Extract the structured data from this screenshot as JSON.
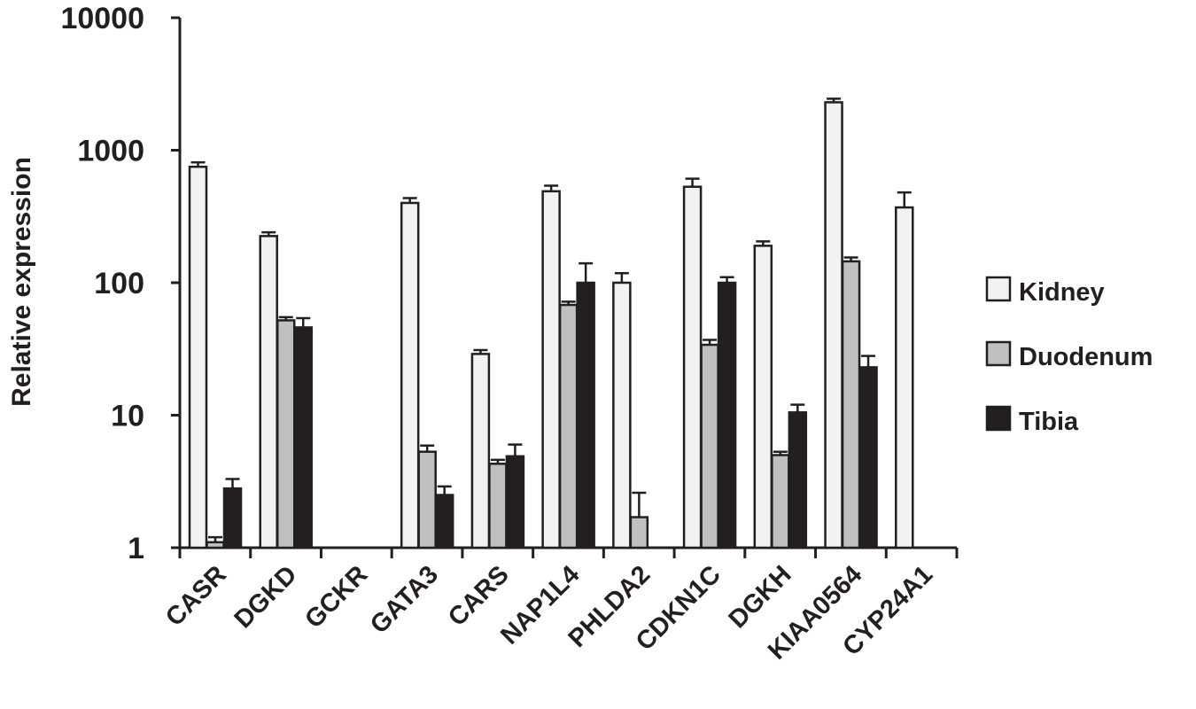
{
  "chart_data": {
    "type": "bar",
    "ylabel": "Relative expression",
    "xlabel": "",
    "yscale": "log",
    "ylim": [
      1,
      10000
    ],
    "yticks": [
      "1",
      "10",
      "100",
      "1000",
      "10000"
    ],
    "legend_position": "right",
    "categories": [
      "CASR",
      "DGKD",
      "GCKR",
      "GATA3",
      "CARS",
      "NAP1L4",
      "PHLDA2",
      "CDKN1C",
      "DGKH",
      "KIAA0564",
      "CYP24A1"
    ],
    "series": [
      {
        "name": "Kidney",
        "color": "#f2f2f2",
        "values": [
          750,
          225,
          null,
          400,
          29,
          490,
          100,
          530,
          190,
          2300,
          370
        ],
        "errors": [
          60,
          15,
          null,
          35,
          2,
          50,
          18,
          80,
          15,
          150,
          110
        ]
      },
      {
        "name": "Duodenum",
        "color": "#c0c0c0",
        "values": [
          1.1,
          52,
          null,
          5.3,
          4.3,
          68,
          1.7,
          34,
          5.0,
          145,
          null
        ],
        "errors": [
          0.1,
          3,
          null,
          0.6,
          0.3,
          4,
          0.9,
          3,
          0.3,
          10,
          null
        ]
      },
      {
        "name": "Tibia",
        "color": "#231f20",
        "values": [
          2.8,
          46,
          null,
          2.5,
          4.9,
          100,
          null,
          100,
          10.5,
          23,
          null
        ],
        "errors": [
          0.5,
          8,
          null,
          0.4,
          1.1,
          40,
          null,
          10,
          1.5,
          5,
          null
        ]
      }
    ]
  }
}
